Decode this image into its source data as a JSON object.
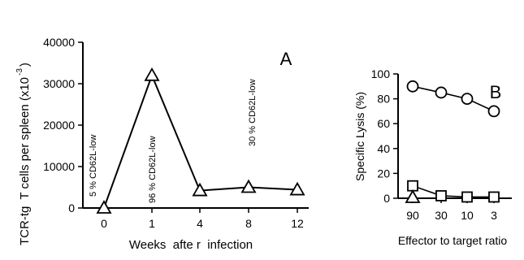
{
  "chart_data": [
    {
      "type": "line",
      "panel_label": "A",
      "xlabel": "Weeks  afte r  infection",
      "ylabel": "TCR-tg  T cells per spleen (x10",
      "ylabel_exponent": "-3",
      "ylabel_close": ")",
      "categories": [
        "0",
        "1",
        "4",
        "8",
        "12"
      ],
      "yticks": [
        "0",
        "10000",
        "20000",
        "30000",
        "40000"
      ],
      "ylim": [
        0,
        40000
      ],
      "grid": false,
      "series": [
        {
          "marker": "triangle",
          "values": [
            0,
            32000,
            4200,
            5000,
            4400
          ]
        }
      ],
      "annotations": [
        {
          "text": "5  %  CD62L-low",
          "category": "0"
        },
        {
          "text": "96  %  CD62L-low",
          "category": "1"
        },
        {
          "text": "30  %  CD62L-low",
          "category": "8"
        }
      ]
    },
    {
      "type": "line",
      "panel_label": "B",
      "xlabel": "Effector to target ratio",
      "ylabel": "Specific Lysis (%)",
      "categories": [
        "90",
        "30",
        "10",
        "3"
      ],
      "yticks": [
        "0",
        "20",
        "40",
        "60",
        "80",
        "100"
      ],
      "ylim": [
        0,
        100
      ],
      "grid": false,
      "series": [
        {
          "marker": "circle",
          "values": [
            90,
            85,
            80,
            70
          ]
        },
        {
          "marker": "square",
          "values": [
            10,
            2,
            1,
            1
          ]
        },
        {
          "marker": "triangle",
          "values": [
            0,
            0,
            0,
            0
          ]
        }
      ]
    }
  ]
}
